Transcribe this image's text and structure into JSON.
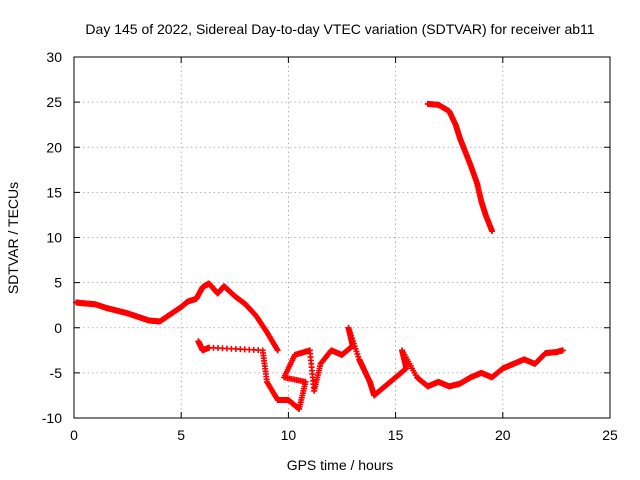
{
  "chart_data": {
    "type": "scatter",
    "title": "Day 145 of 2022, Sidereal Day-to-day VTEC variation (SDTVAR) for receiver ab11",
    "xlabel": "GPS time / hours",
    "ylabel": "SDTVAR / TECUs",
    "xlim": [
      0,
      25
    ],
    "ylim": [
      -10,
      30
    ],
    "xticks": [
      "0",
      "5",
      "10",
      "15",
      "20",
      "25"
    ],
    "yticks": [
      "-10",
      "-5",
      "0",
      "5",
      "10",
      "15",
      "20",
      "25",
      "30"
    ],
    "grid": true,
    "marker": "+",
    "color": "#ff0000",
    "series": [
      {
        "name": "main",
        "points": [
          [
            0.1,
            2.8
          ],
          [
            0.5,
            2.7
          ],
          [
            1.0,
            2.6
          ],
          [
            1.5,
            2.2
          ],
          [
            2.0,
            1.9
          ],
          [
            2.5,
            1.6
          ],
          [
            3.0,
            1.2
          ],
          [
            3.5,
            0.8
          ],
          [
            4.0,
            0.7
          ],
          [
            4.5,
            1.5
          ],
          [
            5.0,
            2.3
          ],
          [
            5.3,
            2.9
          ],
          [
            5.7,
            3.2
          ],
          [
            6.0,
            4.5
          ],
          [
            6.3,
            4.9
          ],
          [
            6.7,
            3.8
          ],
          [
            7.0,
            4.6
          ],
          [
            7.5,
            3.5
          ],
          [
            8.0,
            2.6
          ],
          [
            8.5,
            1.3
          ],
          [
            9.0,
            -0.5
          ],
          [
            9.5,
            -2.5
          ]
        ]
      },
      {
        "name": "descending",
        "points": [
          [
            16.5,
            24.8
          ],
          [
            17.0,
            24.7
          ],
          [
            17.5,
            24.0
          ],
          [
            17.8,
            22.5
          ],
          [
            18.0,
            21.0
          ],
          [
            18.2,
            19.8
          ],
          [
            18.5,
            18.0
          ],
          [
            18.8,
            16.0
          ],
          [
            19.0,
            14.0
          ],
          [
            19.2,
            12.5
          ],
          [
            19.5,
            10.7
          ]
        ]
      },
      {
        "name": "cluster",
        "points": [
          [
            5.8,
            -1.5
          ],
          [
            6.0,
            -2.5
          ],
          [
            6.3,
            -2.2
          ],
          [
            8.8,
            -2.5
          ],
          [
            9.0,
            -6.0
          ],
          [
            9.5,
            -8.0
          ],
          [
            10.0,
            -8.0
          ],
          [
            10.5,
            -9.0
          ],
          [
            10.8,
            -6.0
          ],
          [
            9.8,
            -5.5
          ],
          [
            10.3,
            -3.0
          ],
          [
            11.0,
            -2.5
          ],
          [
            11.2,
            -7.0
          ],
          [
            11.5,
            -4.0
          ],
          [
            12.0,
            -2.5
          ],
          [
            12.5,
            -3.0
          ],
          [
            13.0,
            -2.0
          ],
          [
            12.8,
            0.0
          ],
          [
            13.3,
            -3.5
          ],
          [
            13.5,
            -4.5
          ],
          [
            13.8,
            -6.0
          ],
          [
            14.0,
            -7.5
          ],
          [
            14.5,
            -6.5
          ],
          [
            15.0,
            -5.5
          ],
          [
            15.5,
            -4.5
          ],
          [
            15.3,
            -2.5
          ],
          [
            16.0,
            -5.5
          ],
          [
            16.5,
            -6.5
          ],
          [
            17.0,
            -6.0
          ],
          [
            17.5,
            -6.5
          ],
          [
            18.0,
            -6.2
          ],
          [
            18.5,
            -5.5
          ],
          [
            19.0,
            -5.0
          ],
          [
            19.5,
            -5.5
          ],
          [
            20.0,
            -4.5
          ],
          [
            20.5,
            -4.0
          ],
          [
            21.0,
            -3.5
          ],
          [
            21.5,
            -4.0
          ],
          [
            22.0,
            -2.8
          ],
          [
            22.5,
            -2.7
          ],
          [
            22.8,
            -2.5
          ]
        ]
      }
    ]
  }
}
